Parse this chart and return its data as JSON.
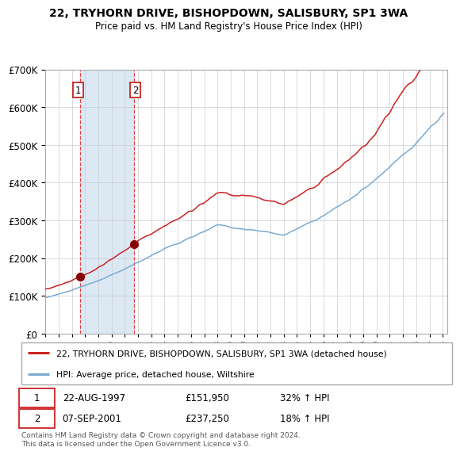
{
  "title": "22, TRYHORN DRIVE, BISHOPDOWN, SALISBURY, SP1 3WA",
  "subtitle": "Price paid vs. HM Land Registry's House Price Index (HPI)",
  "legend_line1": "22, TRYHORN DRIVE, BISHOPDOWN, SALISBURY, SP1 3WA (detached house)",
  "legend_line2": "HPI: Average price, detached house, Wiltshire",
  "transaction1_date": "22-AUG-1997",
  "transaction1_price": 151950,
  "transaction1_pct": "32% ↑ HPI",
  "transaction2_date": "07-SEP-2001",
  "transaction2_price": 237250,
  "transaction2_pct": "18% ↑ HPI",
  "sale1_year": 1997.64,
  "sale2_year": 2001.69,
  "ylim_max": 700000,
  "hpi_color": "#7aaad0",
  "price_color": "#cc2222",
  "marker_color": "#880000",
  "vline_color": "#dd4444",
  "shade_color": "#dce9f5",
  "grid_color": "#cccccc",
  "hatch_color": "#cccccc",
  "footnote": "Contains HM Land Registry data © Crown copyright and database right 2024.\nThis data is licensed under the Open Government Licence v3.0."
}
